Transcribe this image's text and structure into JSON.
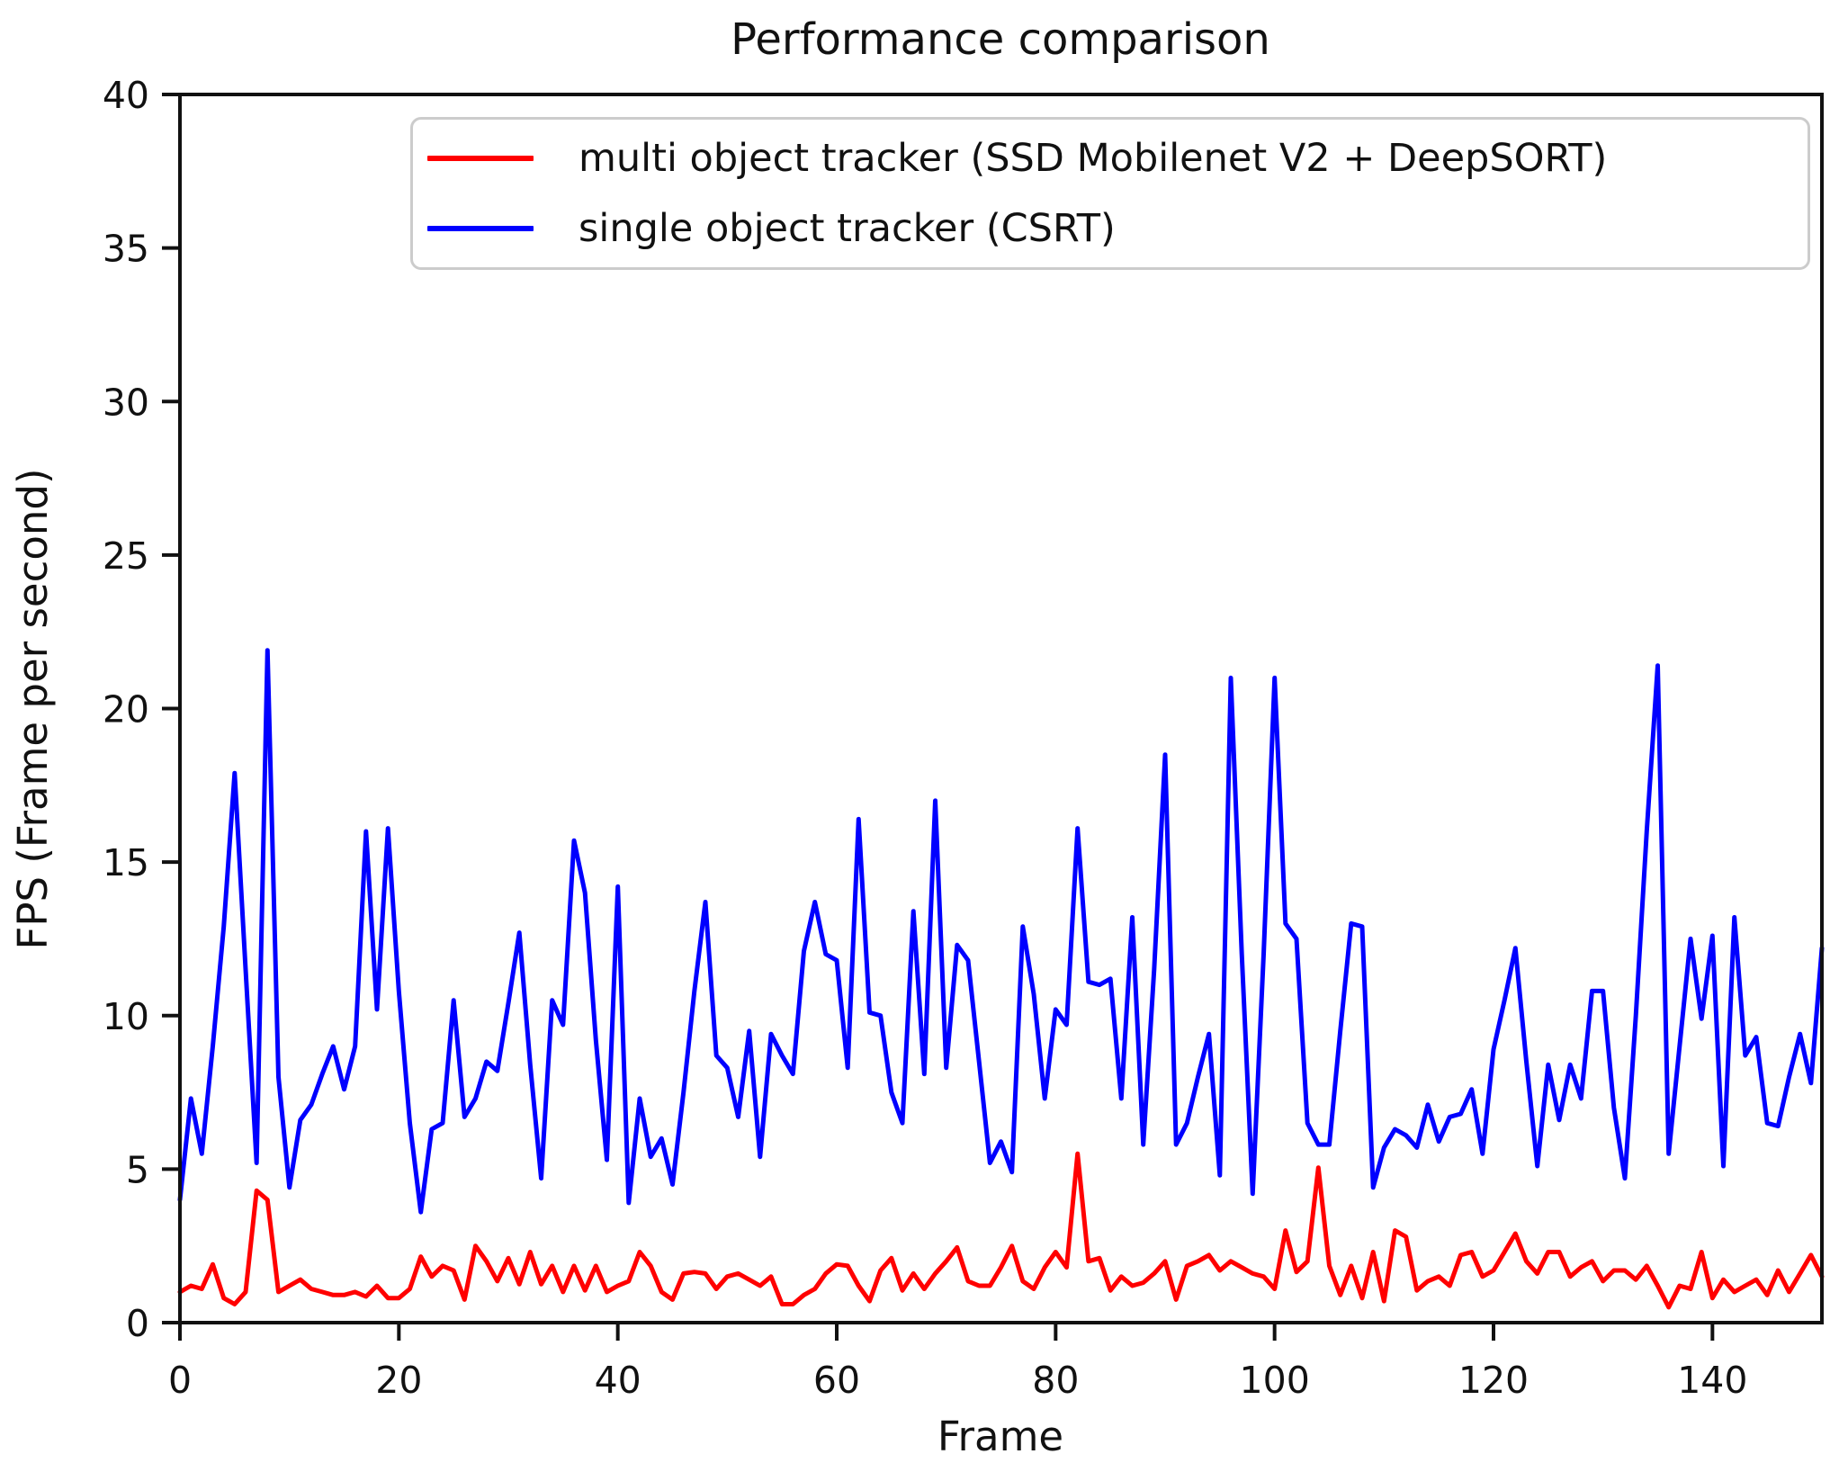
{
  "figure": {
    "title": "Performance comparison",
    "xlabel": "Frame",
    "ylabel": "FPS (Frame per second)"
  },
  "legend": {
    "items": [
      {
        "label": "multi object tracker (SSD Mobilenet V2 + DeepSORT)",
        "color": "#ff0000"
      },
      {
        "label": "single object tracker (CSRT)",
        "color": "#0000ff"
      }
    ]
  },
  "chart_data": {
    "type": "line",
    "title": "Performance comparison",
    "xlabel": "Frame",
    "ylabel": "FPS (Frame per second)",
    "xlim": [
      0,
      150
    ],
    "ylim": [
      0,
      40
    ],
    "xticks": [
      0,
      20,
      40,
      60,
      80,
      100,
      120,
      140
    ],
    "yticks": [
      0,
      5,
      10,
      15,
      20,
      25,
      30,
      35,
      40
    ],
    "grid": false,
    "legend_position": "upper center",
    "x_start": 0,
    "x_step": 1,
    "series": [
      {
        "name": "multi object tracker (SSD Mobilenet V2 + DeepSORT)",
        "color": "#ff0000",
        "values": [
          1.0,
          1.2,
          1.1,
          1.9,
          0.8,
          0.6,
          1.0,
          4.3,
          4.0,
          1.0,
          1.2,
          1.4,
          1.1,
          1.0,
          0.9,
          0.9,
          1.0,
          0.85,
          1.2,
          0.8,
          0.8,
          1.1,
          2.15,
          1.5,
          1.85,
          1.7,
          0.75,
          2.5,
          2.0,
          1.35,
          2.1,
          1.25,
          2.3,
          1.25,
          1.85,
          1.0,
          1.85,
          1.05,
          1.85,
          1.0,
          1.2,
          1.35,
          2.3,
          1.85,
          1.0,
          0.75,
          1.6,
          1.65,
          1.6,
          1.1,
          1.5,
          1.6,
          1.4,
          1.2,
          1.5,
          0.6,
          0.6,
          0.9,
          1.1,
          1.6,
          1.9,
          1.85,
          1.2,
          0.7,
          1.7,
          2.1,
          1.05,
          1.6,
          1.1,
          1.6,
          2.0,
          2.45,
          1.35,
          1.2,
          1.2,
          1.8,
          2.5,
          1.35,
          1.1,
          1.8,
          2.3,
          1.8,
          5.5,
          2.0,
          2.1,
          1.05,
          1.5,
          1.2,
          1.3,
          1.6,
          2.0,
          0.75,
          1.85,
          2.0,
          2.2,
          1.7,
          2.0,
          1.8,
          1.6,
          1.5,
          1.1,
          3.0,
          1.65,
          2.0,
          5.05,
          1.85,
          0.9,
          1.85,
          0.8,
          2.3,
          0.7,
          3.0,
          2.8,
          1.05,
          1.35,
          1.5,
          1.2,
          2.2,
          2.3,
          1.5,
          1.7,
          2.3,
          2.9,
          2.0,
          1.6,
          2.3,
          2.3,
          1.5,
          1.8,
          2.0,
          1.35,
          1.7,
          1.7,
          1.4,
          1.85,
          1.2,
          0.5,
          1.2,
          1.1,
          2.3,
          0.8,
          1.4,
          1.0,
          1.2,
          1.4,
          0.9,
          1.7,
          1.0,
          1.6,
          2.2,
          1.5
        ]
      },
      {
        "name": "single object tracker (CSRT)",
        "color": "#0000ff",
        "values": [
          4.0,
          7.3,
          5.5,
          9.0,
          12.9,
          17.9,
          11.5,
          5.2,
          21.9,
          8.0,
          4.4,
          6.6,
          7.1,
          8.1,
          9.0,
          7.6,
          9.0,
          16.0,
          10.2,
          16.1,
          10.8,
          6.5,
          3.6,
          6.3,
          6.5,
          10.5,
          6.7,
          7.3,
          8.5,
          8.2,
          10.4,
          12.7,
          8.4,
          4.7,
          10.5,
          9.7,
          15.7,
          14.0,
          9.2,
          5.3,
          14.2,
          3.9,
          7.3,
          5.4,
          6.0,
          4.5,
          7.5,
          10.8,
          13.7,
          8.7,
          8.3,
          6.7,
          9.5,
          5.4,
          9.4,
          8.7,
          8.1,
          12.1,
          13.7,
          12.0,
          11.8,
          8.3,
          16.4,
          10.1,
          10.0,
          7.5,
          6.5,
          13.4,
          8.1,
          17.0,
          8.3,
          12.3,
          11.8,
          8.5,
          5.2,
          5.9,
          4.9,
          12.9,
          10.7,
          7.3,
          10.2,
          9.7,
          16.1,
          11.1,
          11.0,
          11.2,
          7.3,
          13.2,
          5.8,
          11.5,
          18.5,
          5.8,
          6.5,
          8.0,
          9.4,
          4.8,
          21.0,
          12.0,
          4.2,
          12.0,
          21.0,
          13.0,
          12.5,
          6.5,
          5.8,
          5.8,
          9.5,
          13.0,
          12.9,
          4.4,
          5.7,
          6.3,
          6.1,
          5.7,
          7.1,
          5.9,
          6.7,
          6.8,
          7.6,
          5.5,
          8.9,
          10.5,
          12.2,
          8.5,
          5.1,
          8.4,
          6.6,
          8.4,
          7.3,
          10.8,
          10.8,
          7.0,
          4.7,
          10.0,
          16.0,
          21.4,
          5.5,
          9.0,
          12.5,
          9.9,
          12.6,
          5.1,
          13.2,
          8.7,
          9.3,
          6.5,
          6.4,
          8.0,
          9.4,
          7.8,
          12.2
        ]
      }
    ]
  }
}
